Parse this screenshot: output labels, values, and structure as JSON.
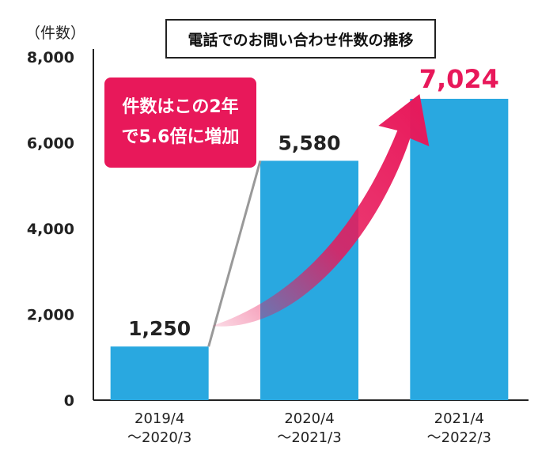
{
  "chart_data": {
    "type": "bar",
    "title": "電話でのお問い合わせ件数の推移",
    "ylabel": "（件数）",
    "xlabel": "",
    "categories": [
      [
        "2019/4",
        "～2020/3"
      ],
      [
        "2020/4",
        "～2021/3"
      ],
      [
        "2021/4",
        "～2022/3"
      ]
    ],
    "values": [
      1250,
      5580,
      7024
    ],
    "value_labels": [
      "1,250",
      "5,580",
      "7,024"
    ],
    "ylim": [
      0,
      8000
    ],
    "yticks": [
      0,
      2000,
      4000,
      6000,
      8000
    ],
    "ytick_labels": [
      "0",
      "2,000",
      "4,000",
      "6,000",
      "8,000"
    ],
    "grid": false,
    "highlight_index": 2,
    "annotation": [
      "件数はこの2年",
      "で5.6倍に増加"
    ],
    "colors": {
      "bar": "#29a8e0",
      "highlight": "#e8185a",
      "callout_bg": "#e8185a",
      "connector": "#999999"
    }
  }
}
